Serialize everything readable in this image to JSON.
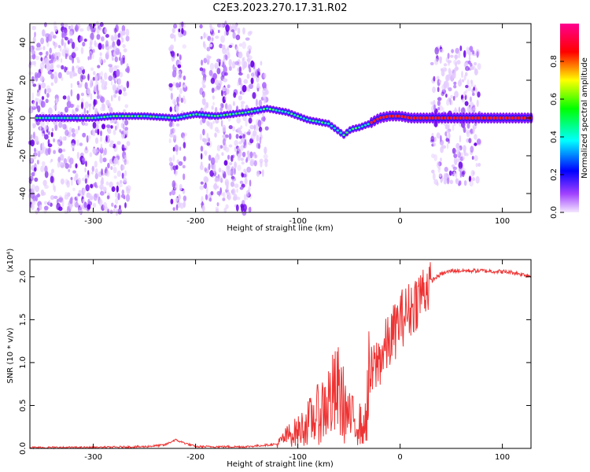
{
  "figure": {
    "title": "C2E3.2023.270.17.31.R02"
  },
  "chart_data": [
    {
      "type": "heatmap",
      "xlabel": "Height of straight line (km)",
      "ylabel": "Frequency (Hz)",
      "xlim": [
        -362,
        128
      ],
      "ylim": [
        -50,
        50
      ],
      "xticks": [
        -300,
        -200,
        -100,
        0,
        100
      ],
      "yticks": [
        -40,
        -20,
        0,
        20,
        40
      ],
      "colorbar": {
        "label": "Normalized spectral amplitude",
        "range": [
          0,
          1
        ],
        "ticks": [
          0.0,
          0.2,
          0.4,
          0.6,
          0.8
        ],
        "colors": [
          "#f0e0ff",
          "#8000ff",
          "#0000ff",
          "#00ffff",
          "#00ff00",
          "#ffff00",
          "#ff0000",
          "#ff0080"
        ]
      },
      "signal_trace": {
        "x": [
          -355,
          -300,
          -280,
          -250,
          -220,
          -200,
          -180,
          -150,
          -130,
          -110,
          -90,
          -70,
          -55,
          -48,
          -40,
          -30,
          -20,
          -10,
          0,
          10,
          30,
          60,
          90,
          128
        ],
        "y": [
          0,
          0,
          1,
          1,
          0,
          2,
          1,
          3,
          5,
          3,
          -1,
          -3,
          -9,
          -6,
          -5,
          -3,
          0,
          1,
          1,
          0,
          0,
          0,
          0,
          0
        ]
      },
      "noise_bands": [
        {
          "x": [
            -362,
            -265
          ],
          "ylim": [
            -50,
            50
          ]
        },
        {
          "x": [
            -225,
            -210
          ],
          "ylim": [
            -50,
            50
          ]
        },
        {
          "x": [
            -195,
            -145
          ],
          "ylim": [
            -50,
            50
          ]
        },
        {
          "x": [
            -145,
            -130
          ],
          "ylim": [
            -30,
            30
          ]
        },
        {
          "x": [
            31,
            78
          ],
          "ylim": [
            -35,
            37
          ]
        }
      ]
    },
    {
      "type": "line",
      "xlabel": "Height of straight line (km)",
      "ylabel": "SNR (10 * v/v)",
      "y_multiplier": "(x10⁴)",
      "xlim": [
        -362,
        128
      ],
      "ylim": [
        0,
        2.2
      ],
      "xticks": [
        -300,
        -200,
        -100,
        0,
        100
      ],
      "yticks": [
        0.0,
        0.5,
        1.0,
        1.5,
        2.0
      ],
      "color": "#ee3333",
      "series": [
        {
          "x": [
            -362,
            -300,
            -250,
            -230,
            -220,
            -200,
            -150,
            -120,
            -110,
            -100,
            -90,
            -80,
            -70,
            -60,
            -50,
            -40,
            -35,
            -30,
            -20,
            -10,
            0,
            10,
            20,
            30,
            40,
            50,
            60,
            80,
            100,
            110,
            128
          ],
          "y": [
            0.01,
            0.01,
            0.02,
            0.04,
            0.1,
            0.02,
            0.02,
            0.05,
            0.15,
            0.2,
            0.3,
            0.4,
            0.55,
            0.65,
            0.35,
            0.3,
            0.2,
            0.8,
            1.05,
            1.25,
            1.5,
            1.62,
            1.8,
            1.95,
            2.03,
            2.07,
            2.07,
            2.07,
            2.06,
            2.05,
            2.01
          ]
        }
      ]
    }
  ]
}
